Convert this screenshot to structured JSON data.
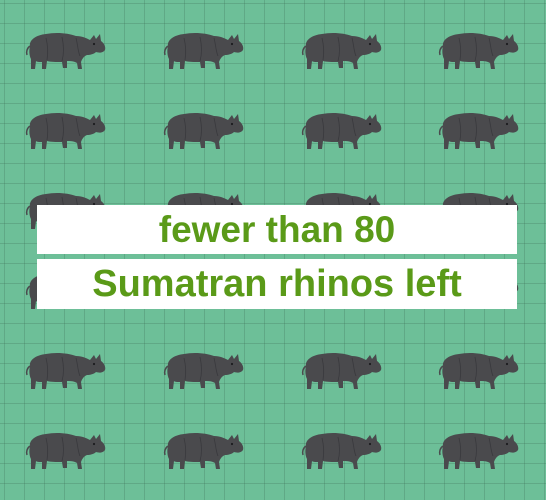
{
  "poster": {
    "line1": "fewer than 80",
    "line2": "Sumatran rhinos left"
  },
  "colors": {
    "background": "#6dbf98",
    "grid": "#4f8f6e",
    "text": "#5a9a18",
    "banner": "#ffffff",
    "rhino": "#4a4a4d"
  },
  "pattern": {
    "icon": "rhino-icon",
    "rows": 6,
    "columns": 4
  }
}
